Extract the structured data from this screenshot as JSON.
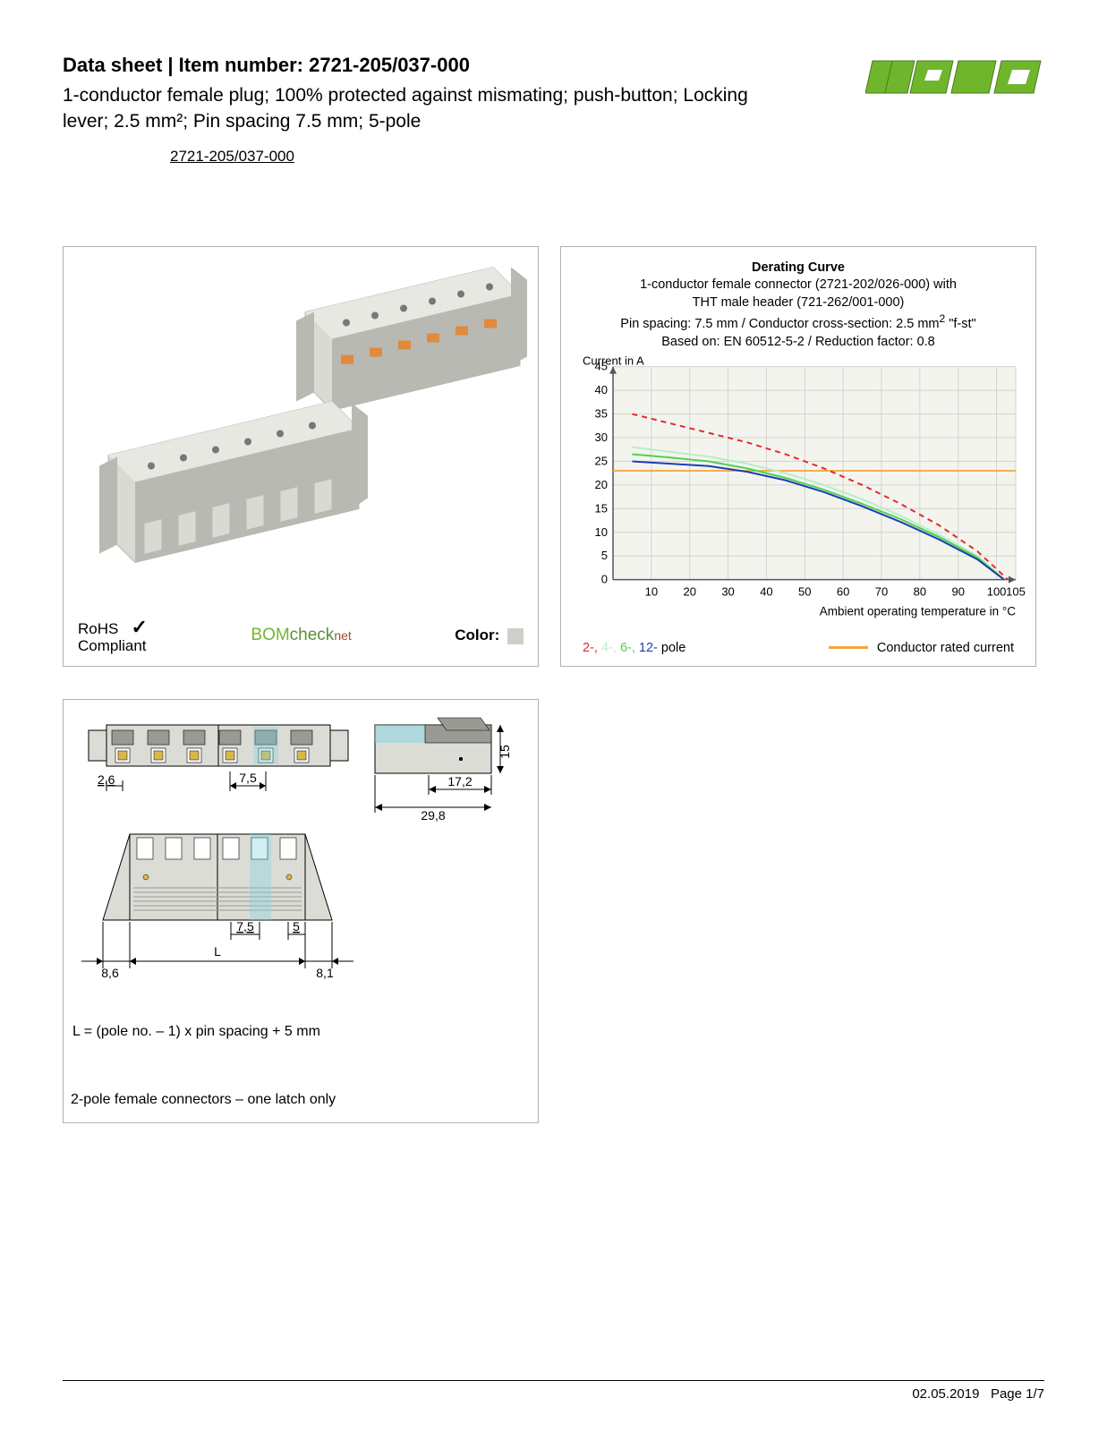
{
  "header": {
    "title_prefix": "Data sheet  |  Item number: ",
    "item_number": "2721-205/037-000",
    "subtitle": "1-conductor female plug; 100% protected against mismating; push-button; Locking lever; 2.5 mm²; Pin spacing 7.5 mm; 5-pole",
    "link_text": "2721-205/037-000"
  },
  "logo": {
    "text": "WAGO",
    "fill": "#70b62c",
    "outline": "#4a7a1e"
  },
  "compliance": {
    "rohs_line1": "RoHS",
    "rohs_line2": "Compliant",
    "check": "✓",
    "bomcheck_b1": "BOM",
    "bomcheck_b2": "check",
    "bomcheck_b3": "net",
    "color_label": "Color:",
    "color_swatch": "#cfcfc8"
  },
  "product_render": {
    "body_color": "#d9dad4",
    "shadow_color": "#b8b9b2",
    "button_color": "#e08a3c"
  },
  "chart": {
    "title": "Derating Curve",
    "sub1": "1-conductor female connector (2721-202/026-000) with",
    "sub2": "THT male header (721-262/001-000)",
    "sub3_a": "Pin spacing: 7.5 mm / Conductor cross-section: 2.5 mm",
    "sub3_b": " \"f-st\"",
    "sub4": "Based on: EN 60512-5-2 / Reduction factor: 0.8",
    "ylabel": "Current in A",
    "xlabel": "Ambient operating temperature in °C",
    "xlim": [
      0,
      105
    ],
    "ylim": [
      0,
      45
    ],
    "xticks": [
      10,
      20,
      30,
      40,
      50,
      60,
      70,
      80,
      90,
      100,
      105
    ],
    "yticks": [
      0,
      5,
      10,
      15,
      20,
      25,
      30,
      35,
      40,
      45
    ],
    "grid_color": "#d4d4cf",
    "axis_color": "#555555",
    "bg_color": "#f4f4ef",
    "rated_current": {
      "y": 23,
      "color": "#f4a43a",
      "width": 1.8
    },
    "series": [
      {
        "name": "2-pole",
        "color": "#e22b2b",
        "width": 2,
        "dash": "6 5",
        "points": [
          [
            5,
            35
          ],
          [
            15,
            33
          ],
          [
            25,
            31
          ],
          [
            35,
            29
          ],
          [
            45,
            26.5
          ],
          [
            55,
            23.5
          ],
          [
            65,
            20
          ],
          [
            75,
            16
          ],
          [
            85,
            11.5
          ],
          [
            95,
            6
          ],
          [
            103,
            0
          ]
        ]
      },
      {
        "name": "4-pole",
        "color": "#b7eec7",
        "width": 2,
        "dash": "",
        "points": [
          [
            5,
            28
          ],
          [
            15,
            27
          ],
          [
            25,
            26
          ],
          [
            35,
            24.5
          ],
          [
            45,
            22.5
          ],
          [
            55,
            20
          ],
          [
            65,
            17
          ],
          [
            75,
            13.5
          ],
          [
            85,
            9.5
          ],
          [
            95,
            5
          ],
          [
            102,
            0
          ]
        ]
      },
      {
        "name": "6-pole",
        "color": "#4fd24f",
        "width": 2,
        "dash": "",
        "points": [
          [
            5,
            26.5
          ],
          [
            15,
            25.8
          ],
          [
            25,
            25
          ],
          [
            35,
            23.5
          ],
          [
            45,
            21.5
          ],
          [
            55,
            19
          ],
          [
            65,
            16
          ],
          [
            75,
            12.8
          ],
          [
            85,
            9
          ],
          [
            95,
            4.7
          ],
          [
            102,
            0
          ]
        ]
      },
      {
        "name": "12-pole",
        "color": "#1b3fb5",
        "width": 2,
        "dash": "",
        "points": [
          [
            5,
            25
          ],
          [
            15,
            24.5
          ],
          [
            25,
            24
          ],
          [
            35,
            22.8
          ],
          [
            45,
            21
          ],
          [
            55,
            18.5
          ],
          [
            65,
            15.5
          ],
          [
            75,
            12.2
          ],
          [
            85,
            8.5
          ],
          [
            95,
            4.3
          ],
          [
            102,
            0
          ]
        ]
      }
    ],
    "legend_poles": [
      {
        "label": "2-",
        "color": "#e22b2b"
      },
      {
        "label": "4-",
        "color": "#b7eec7"
      },
      {
        "label": "6-",
        "color": "#4fd24f"
      },
      {
        "label": "12-",
        "color": "#1b3fb5"
      }
    ],
    "legend_poles_suffix": " pole",
    "legend_rated": "Conductor rated current",
    "legend_rated_color": "#f4a43a"
  },
  "drawing": {
    "body_color": "#dcdcd6",
    "dark_color": "#9a9a94",
    "accent_color": "#7fd4e0",
    "pin_color": "#d9b84a",
    "line_color": "#000000",
    "dims": {
      "d_26": "2,6",
      "d_75": "7,5",
      "d_75b": "7,5",
      "d_5": "5",
      "d_172": "17,2",
      "d_298": "29,8",
      "d_15": "15",
      "d_86": "8,6",
      "d_81": "8,1",
      "d_L": "L"
    }
  },
  "notes": {
    "formula": "L = (pole no. – 1) x pin spacing + 5 mm",
    "two_pole": "2-pole female connectors – one latch only"
  },
  "footer": {
    "date": "02.05.2019",
    "page": "Page 1/7"
  }
}
